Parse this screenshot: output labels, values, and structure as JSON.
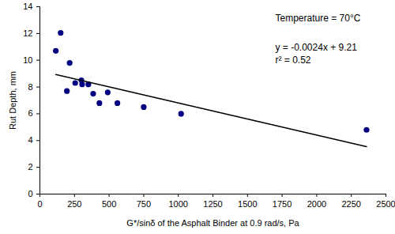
{
  "chart_data": {
    "type": "scatter",
    "x_label": "G*/sinδ of the Asphalt Binder at 0.9 rad/s, Pa",
    "y_label": "Rut Depth, mm",
    "annotations": [
      "Temperature = 70°C",
      "y = -0.0024x + 9.21",
      "r² = 0.52"
    ],
    "series": [
      {
        "type": "scatter",
        "color": "#000080",
        "marker": "circle",
        "x": [
          115,
          150,
          195,
          215,
          255,
          300,
          305,
          350,
          385,
          430,
          490,
          560,
          750,
          1020,
          2360
        ],
        "values": [
          10.7,
          12.05,
          7.7,
          9.8,
          8.3,
          8.5,
          8.2,
          8.2,
          7.5,
          6.8,
          7.6,
          6.8,
          6.5,
          6.0,
          4.8
        ]
      },
      {
        "type": "line",
        "color": "#000000",
        "line_style": "solid",
        "x": [
          115,
          2360
        ],
        "values": [
          8.93,
          3.55
        ]
      }
    ],
    "xlim": [
      0,
      2500
    ],
    "xticks": [
      0,
      250,
      500,
      750,
      1000,
      1250,
      1500,
      1750,
      2000,
      2250,
      2500
    ],
    "ylim": [
      0,
      14
    ],
    "yticks": [
      0,
      2,
      4,
      6,
      8,
      10,
      12,
      14
    ],
    "grid": false
  }
}
